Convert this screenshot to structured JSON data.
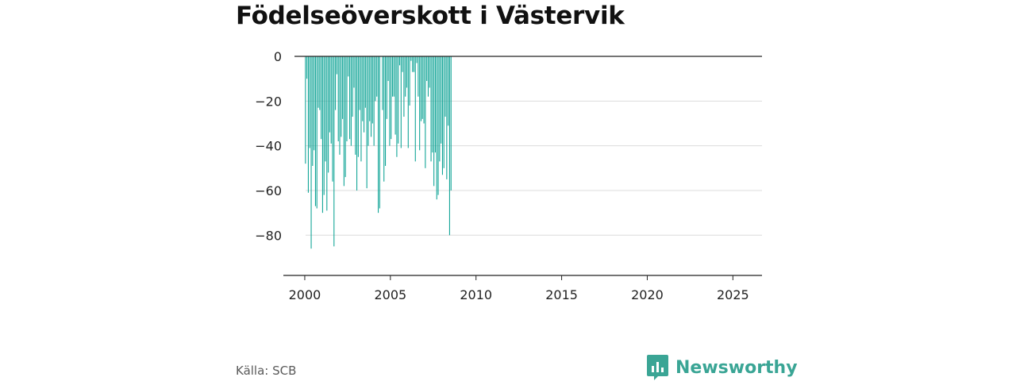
{
  "title": "Födelseöverskott i Västervik",
  "source": "Källa: SCB",
  "brand": {
    "name": "Newsworthy",
    "color": "#3aa595",
    "icon": "bar-chart-speech-bubble-icon"
  },
  "chart_data": {
    "type": "bar",
    "title": "Födelseöverskott i Västervik",
    "xlabel": "",
    "ylabel": "",
    "frequency": "monthly",
    "x_start": "2000-01",
    "ylim": [
      -98,
      0
    ],
    "xlim": [
      1999.4,
      2026.7
    ],
    "yticks": [
      0,
      -20,
      -40,
      -60,
      -80
    ],
    "ytick_labels": [
      "0",
      "−20",
      "−40",
      "−60",
      "−80"
    ],
    "xticks": [
      2000,
      2005,
      2010,
      2015,
      2020,
      2025
    ],
    "xtick_labels": [
      "2000",
      "2005",
      "2010",
      "2015",
      "2020",
      "2025"
    ],
    "grid": true,
    "bar_color": "#0fa496",
    "values": [
      -48,
      -10,
      -61,
      -41,
      -86,
      -49,
      -42,
      -67,
      -68,
      -23,
      -24,
      -37,
      -70,
      -62,
      -47,
      -69,
      -52,
      -34,
      -39,
      -56,
      -85,
      -24,
      -8,
      -38,
      -44,
      -36,
      -28,
      -58,
      -54,
      -38,
      -9,
      -37,
      -40,
      -27,
      -14,
      -44,
      -60,
      -45,
      -24,
      -47,
      -29,
      -34,
      -23,
      -59,
      -40,
      -29,
      -36,
      -30,
      -40,
      -20,
      -18,
      -70,
      -68,
      0,
      -24,
      -56,
      -49,
      -28,
      -11,
      -40,
      -37,
      -18,
      -18,
      -35,
      -45,
      -39,
      -4,
      -41,
      -7,
      -27,
      -18,
      -14,
      -41,
      -22,
      -2,
      -7,
      -7,
      -47,
      -3,
      -18,
      -42,
      -29,
      -28,
      -30,
      -50,
      -11,
      -18,
      -14,
      -47,
      -43,
      -58,
      -43,
      -64,
      -62,
      -47,
      -39,
      -53,
      -50,
      -27,
      -55,
      -31,
      -80,
      -60
    ]
  }
}
